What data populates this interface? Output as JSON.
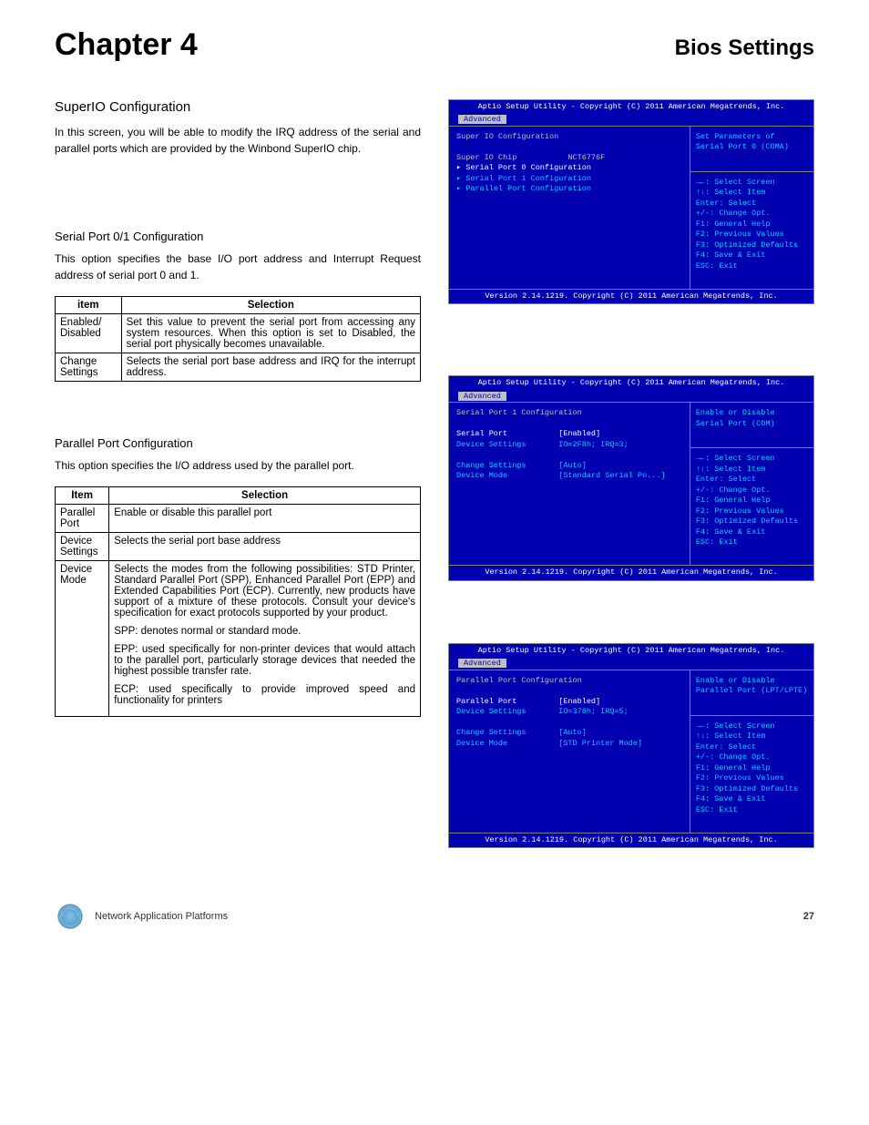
{
  "header": {
    "chapter": "Chapter 4",
    "title": "Bios Settings"
  },
  "section1": {
    "heading": "SuperIO Configuration",
    "body": "In this screen, you will be able to modify the IRQ address of the serial and parallel ports which are provided by the Winbond SuperIO chip."
  },
  "section2": {
    "heading": "Serial Port 0/1 Configuration",
    "body": "This option specifies the base I/O port address and Interrupt Request address of serial port 0 and 1.",
    "table": {
      "headers": [
        "item",
        "Selection"
      ],
      "rows": [
        [
          "Enabled/ Disabled",
          "Set this value to prevent the serial port from accessing any system resources. When this option is set to Disabled, the serial port physically becomes unavailable."
        ],
        [
          "Change Settings",
          "Selects the serial port base address and IRQ for the interrupt address."
        ]
      ]
    }
  },
  "section3": {
    "heading": "Parallel Port Configuration",
    "body": "This option specifies the I/O address used by the parallel port.",
    "table": {
      "headers": [
        "Item",
        "Selection"
      ],
      "rows": [
        [
          "Parallel Port",
          "Enable or disable this parallel port"
        ],
        [
          "Device Settings",
          "Selects the serial port base address"
        ],
        [
          "Device Mode",
          ""
        ]
      ],
      "devmode_paras": [
        "Selects the modes from the following possibilities: STD Printer, Standard Parallel Port (SPP), Enhanced Parallel Port (EPP) and Extended Capabilities Port (ECP). Currently, new products have support of a mixture of these protocols. Consult your device's specification for exact protocols supported by your product.",
        "SPP: denotes normal or standard mode.",
        "EPP: used specifically for non-printer devices that would attach to the parallel port, particularly storage devices that needed the highest possible transfer rate.",
        "ECP: used specifically to provide improved speed and functionality for printers"
      ]
    }
  },
  "bios_common": {
    "titlebar": "Aptio Setup Utility - Copyright (C) 2011 American Megatrends, Inc.",
    "tab": "Advanced",
    "footer": "Version 2.14.1219. Copyright (C) 2011 American Megatrends, Inc.",
    "keys": [
      "→←: Select Screen",
      "↑↓: Select Item",
      "Enter: Select",
      "+/-: Change Opt.",
      "F1: General Help",
      "F2: Previous Values",
      "F3: Optimized Defaults",
      "F4: Save & Exit",
      "ESC: Exit"
    ],
    "colors": {
      "background": "#0000b0",
      "text_grey": "#c0c0c0",
      "text_cyan": "#00d0ff",
      "text_white": "#ffffff",
      "border": "#808080"
    }
  },
  "bios1": {
    "help": [
      "Set Parameters of",
      "Serial Port 0 (COMA)"
    ],
    "left": [
      {
        "t": "Super IO Configuration",
        "c": "grey"
      },
      {
        "t": "",
        "c": "grey"
      },
      {
        "t": "Super IO Chip           NCT6776F",
        "c": "grey"
      },
      {
        "t": "▸ Serial Port 0 Configuration",
        "c": "white"
      },
      {
        "t": "▸ Serial Port 1 Configuration",
        "c": "cyan"
      },
      {
        "t": "▸ Parallel Port Configuration",
        "c": "cyan"
      }
    ]
  },
  "bios2": {
    "help": [
      "Enable or Disable",
      "Serial Port (COM)"
    ],
    "left": [
      {
        "t": "Serial Port 1 Configuration",
        "c": "grey"
      },
      {
        "t": "",
        "c": "grey"
      },
      {
        "t": "Serial Port           [Enabled]",
        "c": "white"
      },
      {
        "t": "Device Settings       IO=2F8h; IRQ=3;",
        "c": "cyan"
      },
      {
        "t": "",
        "c": "grey"
      },
      {
        "t": "Change Settings       [Auto]",
        "c": "cyan"
      },
      {
        "t": "Device Mode           [Standard Serial Po...]",
        "c": "cyan"
      }
    ]
  },
  "bios3": {
    "help": [
      "Enable or Disable",
      "Parallel Port (LPT/LPTE)"
    ],
    "left": [
      {
        "t": "Parallel Port Configuration",
        "c": "grey"
      },
      {
        "t": "",
        "c": "grey"
      },
      {
        "t": "Parallel Port         [Enabled]",
        "c": "white"
      },
      {
        "t": "Device Settings       IO=378h; IRQ=5;",
        "c": "cyan"
      },
      {
        "t": "",
        "c": "grey"
      },
      {
        "t": "Change Settings       [Auto]",
        "c": "cyan"
      },
      {
        "t": "Device Mode           [STD Printer Mode]",
        "c": "cyan"
      }
    ]
  },
  "footer": {
    "text": "Network Application Platforms",
    "page": "27"
  }
}
